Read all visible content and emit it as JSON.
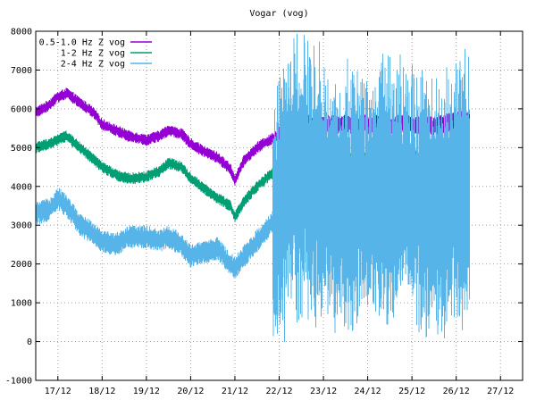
{
  "chart_data": {
    "type": "line",
    "title": "Vogar (vog)",
    "xlabel": "",
    "ylabel": "",
    "xlim": [
      16.5,
      27.5
    ],
    "ylim": [
      -1000,
      8000
    ],
    "x_ticks": [
      {
        "value": 17,
        "label": "17/12"
      },
      {
        "value": 18,
        "label": "18/12"
      },
      {
        "value": 19,
        "label": "19/12"
      },
      {
        "value": 20,
        "label": "20/12"
      },
      {
        "value": 21,
        "label": "21/12"
      },
      {
        "value": 22,
        "label": "22/12"
      },
      {
        "value": 23,
        "label": "23/12"
      },
      {
        "value": 24,
        "label": "24/12"
      },
      {
        "value": 25,
        "label": "25/12"
      },
      {
        "value": 26,
        "label": "26/12"
      },
      {
        "value": 27,
        "label": "27/12"
      }
    ],
    "y_ticks": [
      {
        "value": -1000,
        "label": "-1000"
      },
      {
        "value": 0,
        "label": "0"
      },
      {
        "value": 1000,
        "label": "1000"
      },
      {
        "value": 2000,
        "label": "2000"
      },
      {
        "value": 3000,
        "label": "3000"
      },
      {
        "value": 4000,
        "label": "4000"
      },
      {
        "value": 5000,
        "label": "5000"
      },
      {
        "value": 6000,
        "label": "6000"
      },
      {
        "value": 7000,
        "label": "7000"
      },
      {
        "value": 8000,
        "label": "8000"
      }
    ],
    "grid": true,
    "legend_position": "top-left",
    "series": [
      {
        "name": "0.5-1.0 Hz Z vog",
        "color": "#9400d3",
        "noise": 150,
        "x": [
          16.5,
          16.8,
          17.0,
          17.2,
          17.5,
          17.8,
          18.0,
          18.3,
          18.6,
          19.0,
          19.3,
          19.5,
          19.8,
          20.0,
          20.3,
          20.6,
          20.9,
          21.0,
          21.2,
          21.5,
          21.8,
          22.0,
          22.2,
          22.5,
          23.0,
          23.5,
          24.0,
          24.5,
          25.0,
          25.5,
          26.0,
          26.3
        ],
        "y": [
          5900,
          6100,
          6300,
          6400,
          6150,
          5900,
          5600,
          5450,
          5300,
          5200,
          5300,
          5450,
          5350,
          5100,
          4900,
          4750,
          4450,
          4150,
          4650,
          5000,
          5200,
          5350,
          5500,
          5600,
          5600,
          5600,
          5600,
          5600,
          5600,
          5550,
          5700,
          5750
        ]
      },
      {
        "name": "1-2 Hz Z vog",
        "color": "#009e73",
        "noise": 150,
        "x": [
          16.5,
          16.8,
          17.0,
          17.2,
          17.5,
          17.8,
          18.0,
          18.3,
          18.6,
          19.0,
          19.3,
          19.5,
          19.8,
          20.0,
          20.3,
          20.6,
          20.9,
          21.0,
          21.2,
          21.5,
          21.8,
          22.0,
          22.2,
          22.5,
          23.0,
          23.5,
          24.0,
          24.5,
          25.0,
          25.5,
          26.0,
          26.3
        ],
        "y": [
          5000,
          5100,
          5200,
          5300,
          5000,
          4700,
          4500,
          4300,
          4200,
          4250,
          4400,
          4600,
          4500,
          4200,
          3950,
          3700,
          3500,
          3200,
          3600,
          4000,
          4300,
          4500,
          4600,
          4700,
          4600,
          4600,
          4650,
          4700,
          4700,
          4650,
          4800,
          4900
        ]
      },
      {
        "name": "2-4 Hz Z vog",
        "color": "#56b4e9",
        "noise": 300,
        "x": [
          16.5,
          16.8,
          17.0,
          17.2,
          17.5,
          17.8,
          18.0,
          18.3,
          18.6,
          19.0,
          19.3,
          19.5,
          19.8,
          20.0,
          20.3,
          20.6,
          20.9,
          21.0,
          21.2,
          21.5,
          21.8,
          22.0,
          22.2,
          22.5,
          22.8,
          23.0,
          23.3,
          23.6,
          24.0,
          24.3,
          24.6,
          25.0,
          25.3,
          25.6,
          26.0,
          26.3
        ],
        "y": [
          3300,
          3400,
          3700,
          3500,
          3000,
          2800,
          2600,
          2500,
          2700,
          2700,
          2600,
          2700,
          2500,
          2200,
          2300,
          2400,
          2000,
          1900,
          2200,
          2600,
          3000,
          3500,
          4200,
          4300,
          4100,
          3900,
          3600,
          3500,
          3900,
          3700,
          3800,
          3700,
          3500,
          3600,
          3700,
          3900
        ]
      }
    ]
  }
}
